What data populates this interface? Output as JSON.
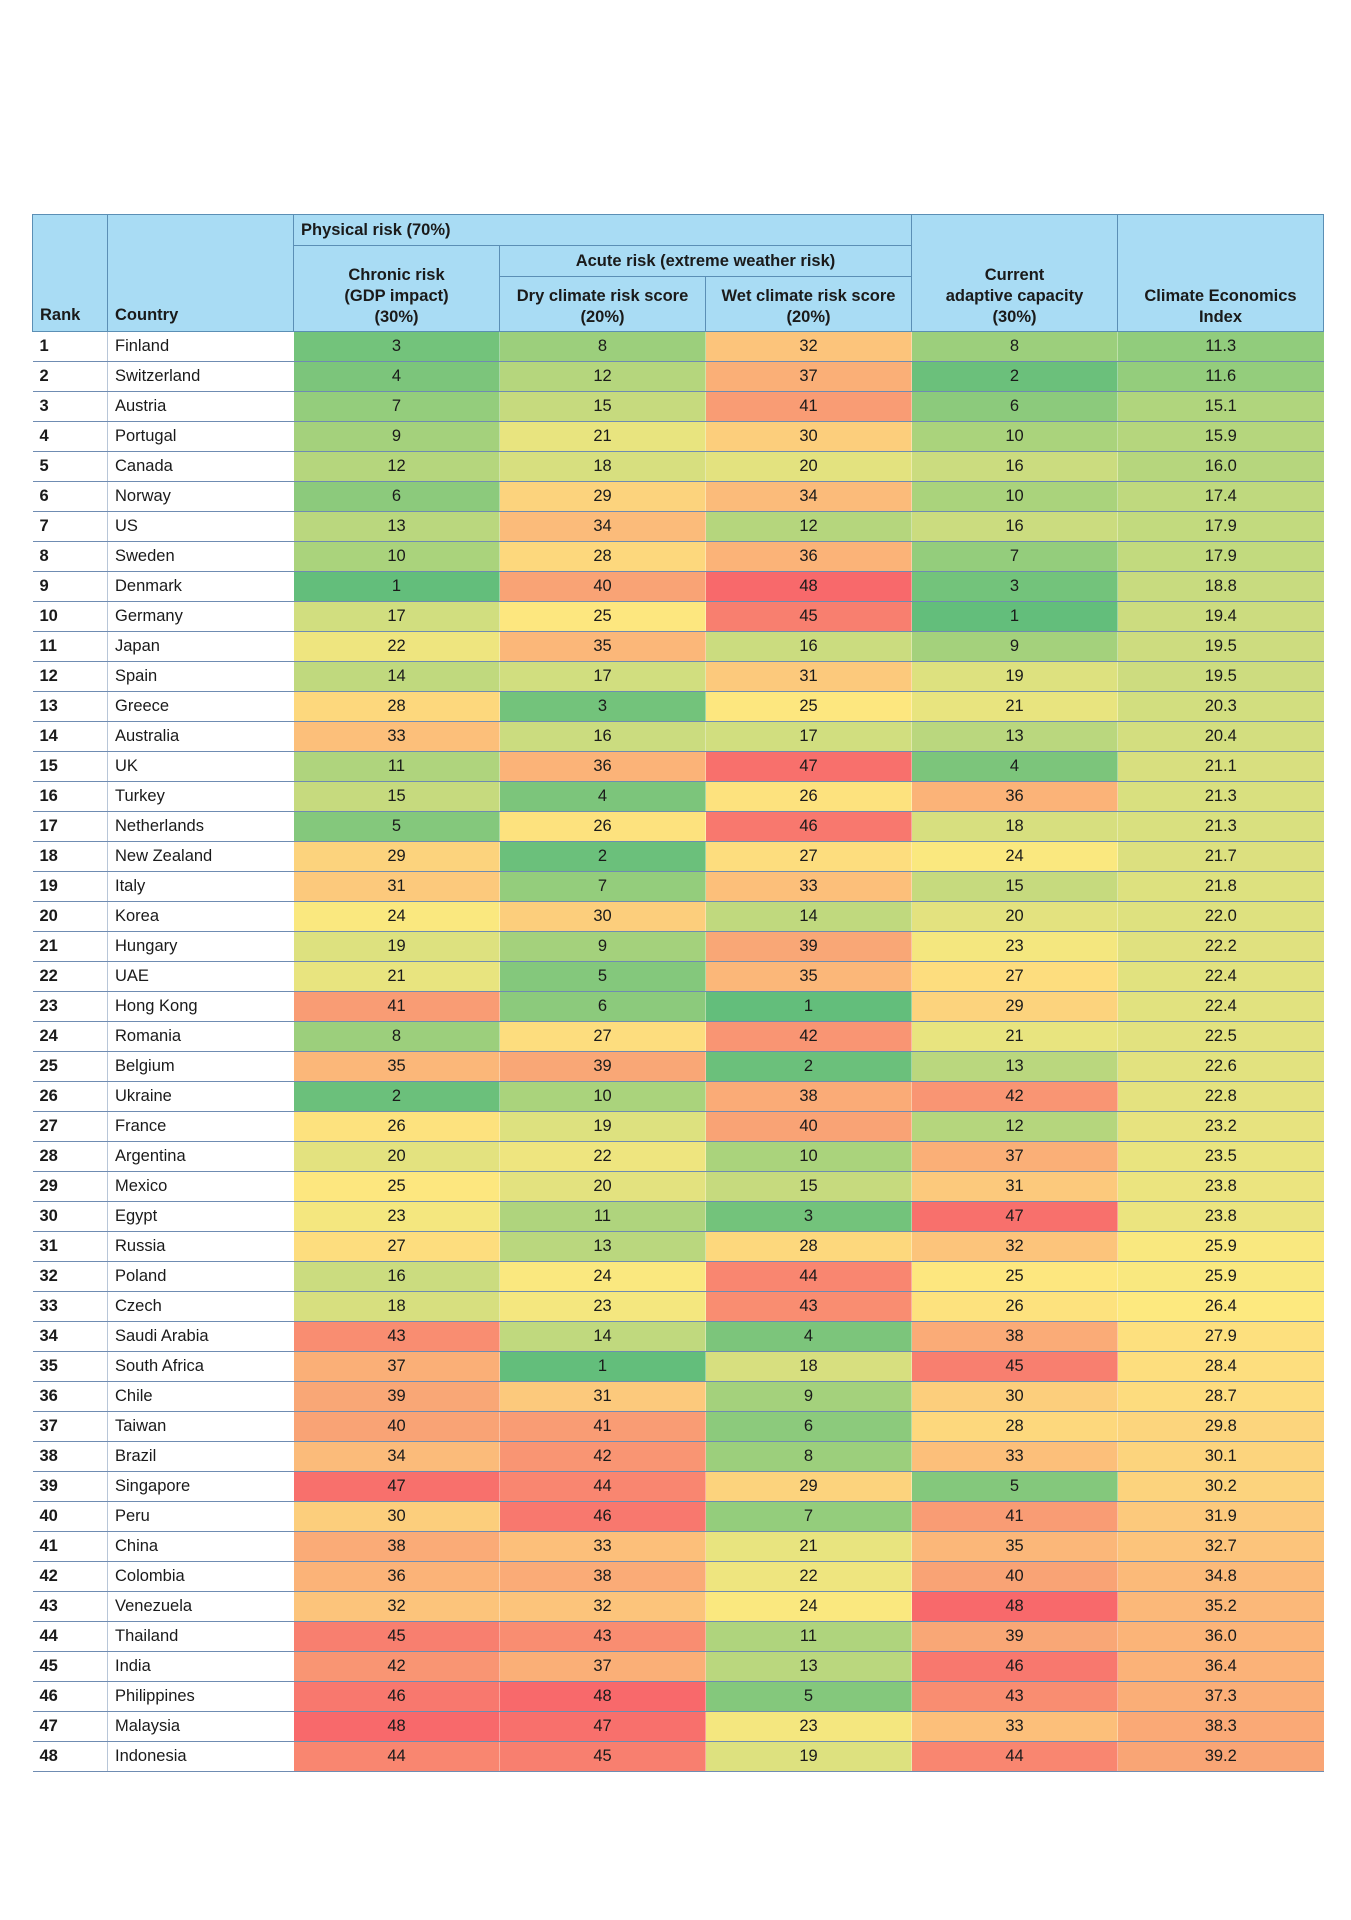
{
  "headers": {
    "rank": "Rank",
    "country": "Country",
    "physical_risk": "Physical risk (70%)",
    "chronic_risk_line1": "Chronic risk",
    "chronic_risk_line2": "(GDP impact)",
    "chronic_risk_line3": "(30%)",
    "acute_risk": "Acute risk (extreme weather risk)",
    "dry_line1": "Dry climate risk score",
    "dry_line2": "(20%)",
    "wet_line1": "Wet climate risk score",
    "wet_line2": "(20%)",
    "adaptive_line1": "Current",
    "adaptive_line2": "adaptive capacity",
    "adaptive_line3": "(30%)",
    "index_line1": "Climate Economics",
    "index_line2": "Index"
  },
  "colors": {
    "header_bg": "#a9dcf4",
    "scale": [
      "#63be7b",
      "#a3d17c",
      "#cfdd7f",
      "#fde97f",
      "#fcc27b",
      "#f9a275",
      "#f8696b"
    ]
  },
  "rows": [
    [
      "1",
      "Finland",
      "3",
      "8",
      "32",
      "8",
      "11.3"
    ],
    [
      "2",
      "Switzerland",
      "4",
      "12",
      "37",
      "2",
      "11.6"
    ],
    [
      "3",
      "Austria",
      "7",
      "15",
      "41",
      "6",
      "15.1"
    ],
    [
      "4",
      "Portugal",
      "9",
      "21",
      "30",
      "10",
      "15.9"
    ],
    [
      "5",
      "Canada",
      "12",
      "18",
      "20",
      "16",
      "16.0"
    ],
    [
      "6",
      "Norway",
      "6",
      "29",
      "34",
      "10",
      "17.4"
    ],
    [
      "7",
      "US",
      "13",
      "34",
      "12",
      "16",
      "17.9"
    ],
    [
      "8",
      "Sweden",
      "10",
      "28",
      "36",
      "7",
      "17.9"
    ],
    [
      "9",
      "Denmark",
      "1",
      "40",
      "48",
      "3",
      "18.8"
    ],
    [
      "10",
      "Germany",
      "17",
      "25",
      "45",
      "1",
      "19.4"
    ],
    [
      "11",
      "Japan",
      "22",
      "35",
      "16",
      "9",
      "19.5"
    ],
    [
      "12",
      "Spain",
      "14",
      "17",
      "31",
      "19",
      "19.5"
    ],
    [
      "13",
      "Greece",
      "28",
      "3",
      "25",
      "21",
      "20.3"
    ],
    [
      "14",
      "Australia",
      "33",
      "16",
      "17",
      "13",
      "20.4"
    ],
    [
      "15",
      "UK",
      "11",
      "36",
      "47",
      "4",
      "21.1"
    ],
    [
      "16",
      "Turkey",
      "15",
      "4",
      "26",
      "36",
      "21.3"
    ],
    [
      "17",
      "Netherlands",
      "5",
      "26",
      "46",
      "18",
      "21.3"
    ],
    [
      "18",
      "New Zealand",
      "29",
      "2",
      "27",
      "24",
      "21.7"
    ],
    [
      "19",
      "Italy",
      "31",
      "7",
      "33",
      "15",
      "21.8"
    ],
    [
      "20",
      "Korea",
      "24",
      "30",
      "14",
      "20",
      "22.0"
    ],
    [
      "21",
      "Hungary",
      "19",
      "9",
      "39",
      "23",
      "22.2"
    ],
    [
      "22",
      "UAE",
      "21",
      "5",
      "35",
      "27",
      "22.4"
    ],
    [
      "23",
      "Hong Kong",
      "41",
      "6",
      "1",
      "29",
      "22.4"
    ],
    [
      "24",
      "Romania",
      "8",
      "27",
      "42",
      "21",
      "22.5"
    ],
    [
      "25",
      "Belgium",
      "35",
      "39",
      "2",
      "13",
      "22.6"
    ],
    [
      "26",
      "Ukraine",
      "2",
      "10",
      "38",
      "42",
      "22.8"
    ],
    [
      "27",
      "France",
      "26",
      "19",
      "40",
      "12",
      "23.2"
    ],
    [
      "28",
      "Argentina",
      "20",
      "22",
      "10",
      "37",
      "23.5"
    ],
    [
      "29",
      "Mexico",
      "25",
      "20",
      "15",
      "31",
      "23.8"
    ],
    [
      "30",
      "Egypt",
      "23",
      "11",
      "3",
      "47",
      "23.8"
    ],
    [
      "31",
      "Russia",
      "27",
      "13",
      "28",
      "32",
      "25.9"
    ],
    [
      "32",
      "Poland",
      "16",
      "24",
      "44",
      "25",
      "25.9"
    ],
    [
      "33",
      "Czech",
      "18",
      "23",
      "43",
      "26",
      "26.4"
    ],
    [
      "34",
      "Saudi Arabia",
      "43",
      "14",
      "4",
      "38",
      "27.9"
    ],
    [
      "35",
      "South Africa",
      "37",
      "1",
      "18",
      "45",
      "28.4"
    ],
    [
      "36",
      "Chile",
      "39",
      "31",
      "9",
      "30",
      "28.7"
    ],
    [
      "37",
      "Taiwan",
      "40",
      "41",
      "6",
      "28",
      "29.8"
    ],
    [
      "38",
      "Brazil",
      "34",
      "42",
      "8",
      "33",
      "30.1"
    ],
    [
      "39",
      "Singapore",
      "47",
      "44",
      "29",
      "5",
      "30.2"
    ],
    [
      "40",
      "Peru",
      "30",
      "46",
      "7",
      "41",
      "31.9"
    ],
    [
      "41",
      "China",
      "38",
      "33",
      "21",
      "35",
      "32.7"
    ],
    [
      "42",
      "Colombia",
      "36",
      "38",
      "22",
      "40",
      "34.8"
    ],
    [
      "43",
      "Venezuela",
      "32",
      "32",
      "24",
      "48",
      "35.2"
    ],
    [
      "44",
      "Thailand",
      "45",
      "43",
      "11",
      "39",
      "36.0"
    ],
    [
      "45",
      "India",
      "42",
      "37",
      "13",
      "46",
      "36.4"
    ],
    [
      "46",
      "Philippines",
      "46",
      "48",
      "5",
      "43",
      "37.3"
    ],
    [
      "47",
      "Malaysia",
      "48",
      "47",
      "23",
      "33",
      "38.3"
    ],
    [
      "48",
      "Indonesia",
      "44",
      "45",
      "19",
      "44",
      "39.2"
    ]
  ]
}
